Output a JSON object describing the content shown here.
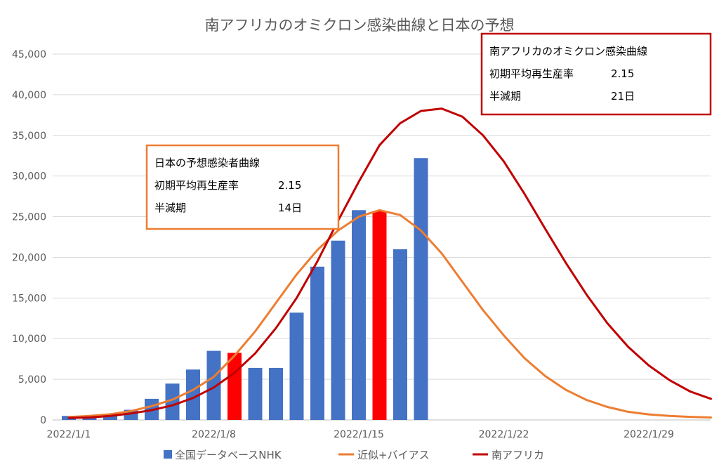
{
  "chart_data": {
    "type": "bar+line",
    "title": "南アフリカのオミクロン感染曲線と日本の予想",
    "xlabel": "",
    "ylabel": "",
    "ylim": [
      0,
      45000
    ],
    "y_ticks": [
      0,
      5000,
      10000,
      15000,
      20000,
      25000,
      30000,
      35000,
      40000,
      45000
    ],
    "y_tick_labels": [
      "0",
      "5,000",
      "10,000",
      "15,000",
      "20,000",
      "25,000",
      "30,000",
      "35,000",
      "40,000",
      "45,000"
    ],
    "x_tick_labels": [
      "2022/1/1",
      "2022/1/8",
      "2022/1/15",
      "2022/1/22",
      "2022/1/29"
    ],
    "x_dates": [
      "2022/1/1",
      "2022/1/2",
      "2022/1/3",
      "2022/1/4",
      "2022/1/5",
      "2022/1/6",
      "2022/1/7",
      "2022/1/8",
      "2022/1/9",
      "2022/1/10",
      "2022/1/11",
      "2022/1/12",
      "2022/1/13",
      "2022/1/14",
      "2022/1/15",
      "2022/1/16",
      "2022/1/17",
      "2022/1/18",
      "2022/1/19",
      "2022/1/20",
      "2022/1/21",
      "2022/1/22",
      "2022/1/23",
      "2022/1/24",
      "2022/1/25",
      "2022/1/26",
      "2022/1/27",
      "2022/1/28",
      "2022/1/29",
      "2022/1/30",
      "2022/1/31",
      "2022/2/1"
    ],
    "grid": true,
    "legend_position": "bottom",
    "series": [
      {
        "name": "全国データベースNHK",
        "type": "bar",
        "color": "#4472C4",
        "highlight_color": "#FF0000",
        "x": [
          "2022/1/1",
          "2022/1/2",
          "2022/1/3",
          "2022/1/4",
          "2022/1/5",
          "2022/1/6",
          "2022/1/7",
          "2022/1/8",
          "2022/1/9",
          "2022/1/10",
          "2022/1/11",
          "2022/1/12",
          "2022/1/13",
          "2022/1/14",
          "2022/1/15",
          "2022/1/16",
          "2022/1/17",
          "2022/1/18"
        ],
        "values": [
          500,
          500,
          550,
          1250,
          2600,
          4470,
          6200,
          8500,
          8250,
          6400,
          6400,
          13200,
          18850,
          22050,
          25800,
          25700,
          21000,
          32200
        ],
        "highlight": [
          false,
          false,
          false,
          false,
          false,
          false,
          false,
          false,
          true,
          false,
          false,
          false,
          false,
          false,
          false,
          true,
          false,
          false
        ]
      },
      {
        "name": "近似+バイアス",
        "type": "line",
        "color": "#ED7D31",
        "values": [
          350,
          500,
          700,
          1100,
          1700,
          2500,
          3700,
          5300,
          7900,
          10900,
          14400,
          17900,
          20900,
          23300,
          25000,
          25800,
          25200,
          23300,
          20500,
          17000,
          13500,
          10400,
          7600,
          5400,
          3700,
          2450,
          1600,
          1000,
          680,
          500,
          380,
          300
        ]
      },
      {
        "name": "南アフリカ",
        "type": "line",
        "color": "#C00000",
        "values": [
          250,
          300,
          500,
          800,
          1200,
          1800,
          2700,
          4000,
          5800,
          8200,
          11300,
          15000,
          19500,
          24500,
          29300,
          33800,
          36500,
          38000,
          38300,
          37300,
          35000,
          31800,
          27800,
          23500,
          19300,
          15400,
          11900,
          9000,
          6700,
          4900,
          3500,
          2600
        ]
      }
    ],
    "annotations": [
      {
        "name": "japan-box",
        "border_color": "#ED7D31",
        "title": "日本の予想感染者曲線",
        "rows": [
          {
            "label": "初期平均再生産率",
            "value": "2.15"
          },
          {
            "label": "半減期",
            "value": "14日"
          }
        ]
      },
      {
        "name": "sa-box",
        "border_color": "#C00000",
        "title": "南アフリカのオミクロン感染曲線",
        "rows": [
          {
            "label": "初期平均再生産率",
            "value": "2.15"
          },
          {
            "label": "半減期",
            "value": "21日"
          }
        ]
      }
    ]
  }
}
